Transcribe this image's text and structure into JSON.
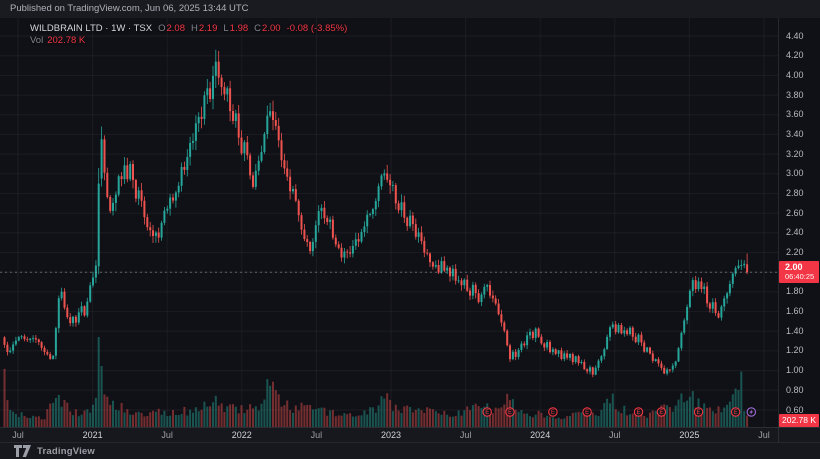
{
  "meta": {
    "published": "Published on TradingView.com, Jun 06, 2025 13:44 UTC"
  },
  "legend": {
    "title": "WILDBRAIN LTD · 1W · TSX",
    "ohlc": [
      {
        "k": "O",
        "v": "2.08"
      },
      {
        "k": "H",
        "v": "2.19"
      },
      {
        "k": "L",
        "v": "1.98"
      },
      {
        "k": "C",
        "v": "2.00"
      }
    ],
    "change": "-0.08 (-3.85%)",
    "vol_label": "Vol",
    "vol_value": "202.78 K"
  },
  "price_axis": {
    "labels": [
      "4.40",
      "4.20",
      "4.00",
      "3.80",
      "3.60",
      "3.40",
      "3.20",
      "3.00",
      "2.80",
      "2.60",
      "2.40",
      "2.20",
      "1.80",
      "1.60",
      "1.40",
      "1.20",
      "1.00",
      "0.80",
      "0.60"
    ],
    "last_price_label": {
      "price": "2.00",
      "countdown": "06:40:25"
    },
    "volume_label": "202.78 K"
  },
  "time_axis": {
    "ticks": [
      {
        "label": "Jul",
        "week": 4.73
      },
      {
        "label": "2021",
        "week": 30.85
      },
      {
        "label": "Jul",
        "week": 56.97
      },
      {
        "label": "2022",
        "week": 83.09
      },
      {
        "label": "Jul",
        "week": 109.21
      },
      {
        "label": "2023",
        "week": 135.33
      },
      {
        "label": "Jul",
        "week": 161.45
      },
      {
        "label": "2024",
        "week": 187.57
      },
      {
        "label": "Jul",
        "week": 213.69
      },
      {
        "label": "2025",
        "week": 239.81
      },
      {
        "label": "Jul",
        "week": 265.93
      }
    ]
  },
  "footer": {
    "brand": "TradingView"
  },
  "colors": {
    "up": "#26a69a",
    "down": "#ef5350",
    "vol_up": "rgba(38,166,154,0.45)",
    "vol_down": "rgba(239,83,80,0.45)",
    "accent_red": "#f23645",
    "earnings_upcoming": "#a06bd8",
    "grid": "rgba(240,243,250,0.05)",
    "last_price_line": "rgba(160,163,174,0.55)"
  },
  "chart_data": {
    "type": "candlestick+volume",
    "symbol": "WILDBRAIN LTD",
    "exchange": "TSX",
    "interval": "1W",
    "title": "WILDBRAIN LTD weekly candlestick chart, Jun 2020 - Jun 2025",
    "price_axis_range": [
      0.6,
      4.4
    ],
    "price_tick_step": 0.2,
    "grid": true,
    "weeks_total": 261,
    "current_price_line": 2.0,
    "last": {
      "open": 2.08,
      "high": 2.19,
      "low": 1.98,
      "close": 2.0,
      "change": -0.08,
      "change_pct": -3.85,
      "volume": "202.78 K"
    },
    "close_keypoints": [
      [
        0,
        1.25
      ],
      [
        1,
        1.16
      ],
      [
        2,
        1.2
      ],
      [
        3,
        1.28
      ],
      [
        4,
        1.3
      ],
      [
        6,
        1.38
      ],
      [
        8,
        1.3
      ],
      [
        10,
        1.34
      ],
      [
        12,
        1.26
      ],
      [
        14,
        1.2
      ],
      [
        16,
        1.12
      ],
      [
        17,
        1.18
      ],
      [
        18,
        1.45
      ],
      [
        19,
        1.72
      ],
      [
        20,
        1.8
      ],
      [
        21,
        1.65
      ],
      [
        22,
        1.52
      ],
      [
        23,
        1.45
      ],
      [
        24,
        1.55
      ],
      [
        25,
        1.5
      ],
      [
        26,
        1.58
      ],
      [
        27,
        1.66
      ],
      [
        28,
        1.6
      ],
      [
        29,
        1.72
      ],
      [
        30,
        1.85
      ],
      [
        31,
        1.95
      ],
      [
        32,
        2.08
      ],
      [
        33,
        2.9
      ],
      [
        34,
        3.28
      ],
      [
        35,
        3.02
      ],
      [
        36,
        2.78
      ],
      [
        37,
        2.6
      ],
      [
        38,
        2.72
      ],
      [
        39,
        2.86
      ],
      [
        40,
        3.0
      ],
      [
        41,
        2.92
      ],
      [
        42,
        3.1
      ],
      [
        43,
        2.96
      ],
      [
        44,
        3.04
      ],
      [
        45,
        2.88
      ],
      [
        46,
        2.76
      ],
      [
        47,
        2.84
      ],
      [
        48,
        2.7
      ],
      [
        49,
        2.58
      ],
      [
        50,
        2.52
      ],
      [
        51,
        2.44
      ],
      [
        52,
        2.35
      ],
      [
        53,
        2.42
      ],
      [
        54,
        2.36
      ],
      [
        55,
        2.45
      ],
      [
        56,
        2.58
      ],
      [
        57,
        2.66
      ],
      [
        58,
        2.76
      ],
      [
        59,
        2.7
      ],
      [
        60,
        2.84
      ],
      [
        61,
        2.95
      ],
      [
        62,
        3.08
      ],
      [
        63,
        3.02
      ],
      [
        64,
        3.2
      ],
      [
        65,
        3.32
      ],
      [
        66,
        3.26
      ],
      [
        67,
        3.46
      ],
      [
        68,
        3.6
      ],
      [
        69,
        3.55
      ],
      [
        70,
        3.76
      ],
      [
        71,
        3.92
      ],
      [
        72,
        3.85
      ],
      [
        73,
        4.0
      ],
      [
        74,
        4.12
      ],
      [
        75,
        4.02
      ],
      [
        76,
        3.88
      ],
      [
        77,
        3.72
      ],
      [
        78,
        3.82
      ],
      [
        79,
        3.66
      ],
      [
        80,
        3.52
      ],
      [
        81,
        3.58
      ],
      [
        82,
        3.42
      ],
      [
        83,
        3.28
      ],
      [
        84,
        3.32
      ],
      [
        85,
        3.18
      ],
      [
        86,
        3.02
      ],
      [
        87,
        2.86
      ],
      [
        88,
        2.96
      ],
      [
        89,
        3.1
      ],
      [
        90,
        3.24
      ],
      [
        91,
        3.38
      ],
      [
        92,
        3.56
      ],
      [
        93,
        3.7
      ],
      [
        94,
        3.62
      ],
      [
        95,
        3.48
      ],
      [
        96,
        3.34
      ],
      [
        97,
        3.18
      ],
      [
        98,
        3.04
      ],
      [
        99,
        2.9
      ],
      [
        100,
        2.8
      ],
      [
        101,
        2.86
      ],
      [
        102,
        2.7
      ],
      [
        103,
        2.56
      ],
      [
        104,
        2.48
      ],
      [
        105,
        2.38
      ],
      [
        106,
        2.3
      ],
      [
        107,
        2.22
      ],
      [
        108,
        2.34
      ],
      [
        109,
        2.46
      ],
      [
        110,
        2.56
      ],
      [
        111,
        2.64
      ],
      [
        112,
        2.56
      ],
      [
        113,
        2.48
      ],
      [
        114,
        2.52
      ],
      [
        115,
        2.4
      ],
      [
        116,
        2.32
      ],
      [
        117,
        2.24
      ],
      [
        118,
        2.16
      ],
      [
        119,
        2.24
      ],
      [
        120,
        2.18
      ],
      [
        121,
        2.14
      ],
      [
        122,
        2.26
      ],
      [
        123,
        2.34
      ],
      [
        124,
        2.28
      ],
      [
        125,
        2.4
      ],
      [
        126,
        2.52
      ],
      [
        127,
        2.62
      ],
      [
        128,
        2.58
      ],
      [
        129,
        2.66
      ],
      [
        130,
        2.76
      ],
      [
        131,
        2.84
      ],
      [
        132,
        2.92
      ],
      [
        133,
        3.0
      ],
      [
        134,
        2.94
      ],
      [
        135,
        2.84
      ],
      [
        136,
        2.88
      ],
      [
        137,
        2.76
      ],
      [
        138,
        2.66
      ],
      [
        139,
        2.7
      ],
      [
        140,
        2.58
      ],
      [
        141,
        2.5
      ],
      [
        142,
        2.54
      ],
      [
        143,
        2.44
      ],
      [
        144,
        2.36
      ],
      [
        145,
        2.4
      ],
      [
        146,
        2.28
      ],
      [
        147,
        2.2
      ],
      [
        148,
        2.24
      ],
      [
        149,
        2.12
      ],
      [
        150,
        2.05
      ],
      [
        151,
        2.1
      ],
      [
        152,
        2.02
      ],
      [
        153,
        2.08
      ],
      [
        154,
        1.98
      ],
      [
        155,
        2.05
      ],
      [
        156,
        1.95
      ],
      [
        157,
        2.0
      ],
      [
        158,
        1.92
      ],
      [
        159,
        1.96
      ],
      [
        160,
        1.88
      ],
      [
        161,
        1.92
      ],
      [
        162,
        1.84
      ],
      [
        163,
        1.78
      ],
      [
        164,
        1.84
      ],
      [
        165,
        1.76
      ],
      [
        166,
        1.7
      ],
      [
        167,
        1.76
      ],
      [
        168,
        1.82
      ],
      [
        169,
        1.88
      ],
      [
        170,
        1.8
      ],
      [
        171,
        1.74
      ],
      [
        172,
        1.68
      ],
      [
        173,
        1.6
      ],
      [
        174,
        1.5
      ],
      [
        175,
        1.38
      ],
      [
        176,
        1.24
      ],
      [
        177,
        1.12
      ],
      [
        178,
        1.18
      ],
      [
        179,
        1.12
      ],
      [
        180,
        1.22
      ],
      [
        181,
        1.3
      ],
      [
        182,
        1.26
      ],
      [
        183,
        1.36
      ],
      [
        184,
        1.42
      ],
      [
        185,
        1.34
      ],
      [
        186,
        1.4
      ],
      [
        187,
        1.33
      ],
      [
        188,
        1.28
      ],
      [
        189,
        1.22
      ],
      [
        190,
        1.27
      ],
      [
        191,
        1.2
      ],
      [
        192,
        1.24
      ],
      [
        193,
        1.17
      ],
      [
        194,
        1.21
      ],
      [
        195,
        1.14
      ],
      [
        196,
        1.18
      ],
      [
        197,
        1.11
      ],
      [
        198,
        1.16
      ],
      [
        199,
        1.09
      ],
      [
        200,
        1.13
      ],
      [
        201,
        1.06
      ],
      [
        202,
        1.1
      ],
      [
        203,
        1.03
      ],
      [
        204,
        0.99
      ],
      [
        205,
        1.04
      ],
      [
        206,
        0.98
      ],
      [
        207,
        1.03
      ],
      [
        208,
        1.08
      ],
      [
        209,
        1.14
      ],
      [
        210,
        1.22
      ],
      [
        211,
        1.32
      ],
      [
        212,
        1.42
      ],
      [
        213,
        1.49
      ],
      [
        214,
        1.41
      ],
      [
        215,
        1.46
      ],
      [
        216,
        1.39
      ],
      [
        217,
        1.44
      ],
      [
        218,
        1.37
      ],
      [
        219,
        1.41
      ],
      [
        220,
        1.34
      ],
      [
        221,
        1.29
      ],
      [
        222,
        1.34
      ],
      [
        223,
        1.27
      ],
      [
        224,
        1.21
      ],
      [
        225,
        1.25
      ],
      [
        226,
        1.17
      ],
      [
        227,
        1.11
      ],
      [
        228,
        1.14
      ],
      [
        229,
        1.07
      ],
      [
        230,
        1.01
      ],
      [
        231,
        0.97
      ],
      [
        232,
        1.01
      ],
      [
        233,
        0.99
      ],
      [
        234,
        1.04
      ],
      [
        235,
        1.11
      ],
      [
        236,
        1.24
      ],
      [
        237,
        1.38
      ],
      [
        238,
        1.53
      ],
      [
        239,
        1.68
      ],
      [
        240,
        1.8
      ],
      [
        241,
        1.89
      ],
      [
        242,
        1.83
      ],
      [
        243,
        1.9
      ],
      [
        244,
        1.79
      ],
      [
        245,
        1.84
      ],
      [
        246,
        1.71
      ],
      [
        247,
        1.64
      ],
      [
        248,
        1.69
      ],
      [
        249,
        1.61
      ],
      [
        250,
        1.57
      ],
      [
        251,
        1.64
      ],
      [
        252,
        1.71
      ],
      [
        253,
        1.79
      ],
      [
        254,
        1.87
      ],
      [
        255,
        1.94
      ],
      [
        256,
        2.03
      ],
      [
        257,
        2.1
      ],
      [
        258,
        2.08
      ],
      [
        259,
        2.08
      ],
      [
        260,
        2.0
      ]
    ],
    "overrides": {
      "33": {
        "o": 2.06,
        "h": 3.06,
        "l": 1.98,
        "c": 2.9
      },
      "34": {
        "h": 3.48
      },
      "74": {
        "h": 4.26
      },
      "260": {
        "o": 2.08,
        "h": 2.19,
        "l": 1.98,
        "c": 2.0
      }
    },
    "volume_keypoints": [
      [
        0,
        0.6
      ],
      [
        1,
        0.25
      ],
      [
        2,
        0.15
      ],
      [
        4,
        0.12
      ],
      [
        6,
        0.18
      ],
      [
        8,
        0.1
      ],
      [
        10,
        0.14
      ],
      [
        12,
        0.1
      ],
      [
        14,
        0.12
      ],
      [
        16,
        0.2
      ],
      [
        18,
        0.28
      ],
      [
        19,
        0.35
      ],
      [
        20,
        0.3
      ],
      [
        22,
        0.22
      ],
      [
        24,
        0.18
      ],
      [
        26,
        0.15
      ],
      [
        28,
        0.18
      ],
      [
        30,
        0.22
      ],
      [
        32,
        0.3
      ],
      [
        33,
        1.0
      ],
      [
        34,
        0.68
      ],
      [
        35,
        0.4
      ],
      [
        36,
        0.3
      ],
      [
        38,
        0.25
      ],
      [
        40,
        0.22
      ],
      [
        44,
        0.18
      ],
      [
        48,
        0.15
      ],
      [
        52,
        0.18
      ],
      [
        56,
        0.14
      ],
      [
        60,
        0.16
      ],
      [
        64,
        0.18
      ],
      [
        68,
        0.2
      ],
      [
        72,
        0.24
      ],
      [
        74,
        0.28
      ],
      [
        78,
        0.22
      ],
      [
        82,
        0.18
      ],
      [
        86,
        0.22
      ],
      [
        90,
        0.26
      ],
      [
        93,
        0.55
      ],
      [
        95,
        0.35
      ],
      [
        98,
        0.25
      ],
      [
        102,
        0.2
      ],
      [
        106,
        0.22
      ],
      [
        110,
        0.18
      ],
      [
        114,
        0.15
      ],
      [
        118,
        0.18
      ],
      [
        122,
        0.14
      ],
      [
        126,
        0.16
      ],
      [
        130,
        0.22
      ],
      [
        133,
        0.38
      ],
      [
        136,
        0.25
      ],
      [
        140,
        0.2
      ],
      [
        144,
        0.16
      ],
      [
        148,
        0.18
      ],
      [
        152,
        0.15
      ],
      [
        156,
        0.13
      ],
      [
        160,
        0.15
      ],
      [
        164,
        0.22
      ],
      [
        166,
        0.28
      ],
      [
        170,
        0.18
      ],
      [
        174,
        0.25
      ],
      [
        177,
        0.35
      ],
      [
        180,
        0.2
      ],
      [
        184,
        0.16
      ],
      [
        187,
        0.14
      ],
      [
        190,
        0.12
      ],
      [
        194,
        0.1
      ],
      [
        198,
        0.12
      ],
      [
        202,
        0.14
      ],
      [
        204,
        0.18
      ],
      [
        208,
        0.16
      ],
      [
        210,
        0.25
      ],
      [
        213,
        0.3
      ],
      [
        216,
        0.2
      ],
      [
        220,
        0.16
      ],
      [
        224,
        0.14
      ],
      [
        228,
        0.15
      ],
      [
        231,
        0.22
      ],
      [
        234,
        0.18
      ],
      [
        237,
        0.3
      ],
      [
        240,
        0.35
      ],
      [
        244,
        0.22
      ],
      [
        248,
        0.18
      ],
      [
        252,
        0.2
      ],
      [
        255,
        0.28
      ],
      [
        257,
        0.4
      ],
      [
        258,
        0.6
      ],
      [
        259,
        0.18
      ],
      [
        260,
        0.13
      ]
    ],
    "earnings_badges": [
      {
        "week": 169,
        "type": "reported"
      },
      {
        "week": 177,
        "type": "reported"
      },
      {
        "week": 192,
        "type": "reported"
      },
      {
        "week": 204,
        "type": "reported"
      },
      {
        "week": 222,
        "type": "reported"
      },
      {
        "week": 230,
        "type": "reported"
      },
      {
        "week": 243,
        "type": "reported"
      },
      {
        "week": 256,
        "type": "reported"
      },
      {
        "week": 261.5,
        "type": "upcoming"
      }
    ]
  }
}
